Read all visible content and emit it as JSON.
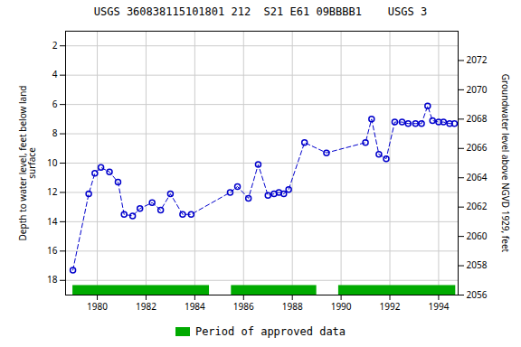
{
  "chart_data": {
    "type": "line",
    "title": "USGS 360838115101801 212  S21 E61 09BBBB1    USGS 3",
    "ylabel": "Depth to water level, feet below land\nsurface",
    "y2label": "Groundwater level above NGVD 1929, feet",
    "x": [
      1979.0,
      1979.65,
      1979.9,
      1980.15,
      1980.5,
      1980.85,
      1981.1,
      1981.45,
      1981.75,
      1982.25,
      1982.6,
      1983.0,
      1983.5,
      1983.85,
      1985.45,
      1985.75,
      1986.2,
      1986.6,
      1987.0,
      1987.25,
      1987.45,
      1987.65,
      1987.85,
      1988.5,
      1989.4,
      1991.0,
      1991.25,
      1991.55,
      1991.85,
      1992.2,
      1992.5,
      1992.75,
      1993.05,
      1993.3,
      1993.55,
      1993.75,
      1994.0,
      1994.2,
      1994.45,
      1994.65
    ],
    "values": [
      17.3,
      12.1,
      10.7,
      10.3,
      10.6,
      11.3,
      13.5,
      13.6,
      13.1,
      12.7,
      13.2,
      12.1,
      13.5,
      13.5,
      12.0,
      11.6,
      12.4,
      10.1,
      12.2,
      12.1,
      12.0,
      12.1,
      11.8,
      8.6,
      9.3,
      8.6,
      7.0,
      9.4,
      9.7,
      7.2,
      7.2,
      7.3,
      7.3,
      7.3,
      6.1,
      7.1,
      7.2,
      7.2,
      7.3,
      7.3
    ],
    "color": "#0000cc",
    "marker": "circle",
    "line_style": "dashed",
    "xlim": [
      1978.7,
      1994.8
    ],
    "xticks": [
      1980,
      1982,
      1984,
      1986,
      1988,
      1990,
      1992,
      1994
    ],
    "ylim": [
      19,
      1
    ],
    "yticks": [
      2,
      4,
      6,
      8,
      10,
      12,
      14,
      16,
      18
    ],
    "y2lim": [
      2056,
      2074
    ],
    "y2ticks": [
      2056,
      2058,
      2060,
      2062,
      2064,
      2066,
      2068,
      2070,
      2072
    ],
    "grid": true,
    "legend": "bottom",
    "approved_periods": {
      "name": "Period of approved data",
      "color": "#00aa00",
      "intervals": [
        [
          1979.0,
          1984.6
        ],
        [
          1985.5,
          1989.0
        ],
        [
          1989.9,
          1994.7
        ]
      ],
      "y": 18.7,
      "height": 0.7
    }
  }
}
